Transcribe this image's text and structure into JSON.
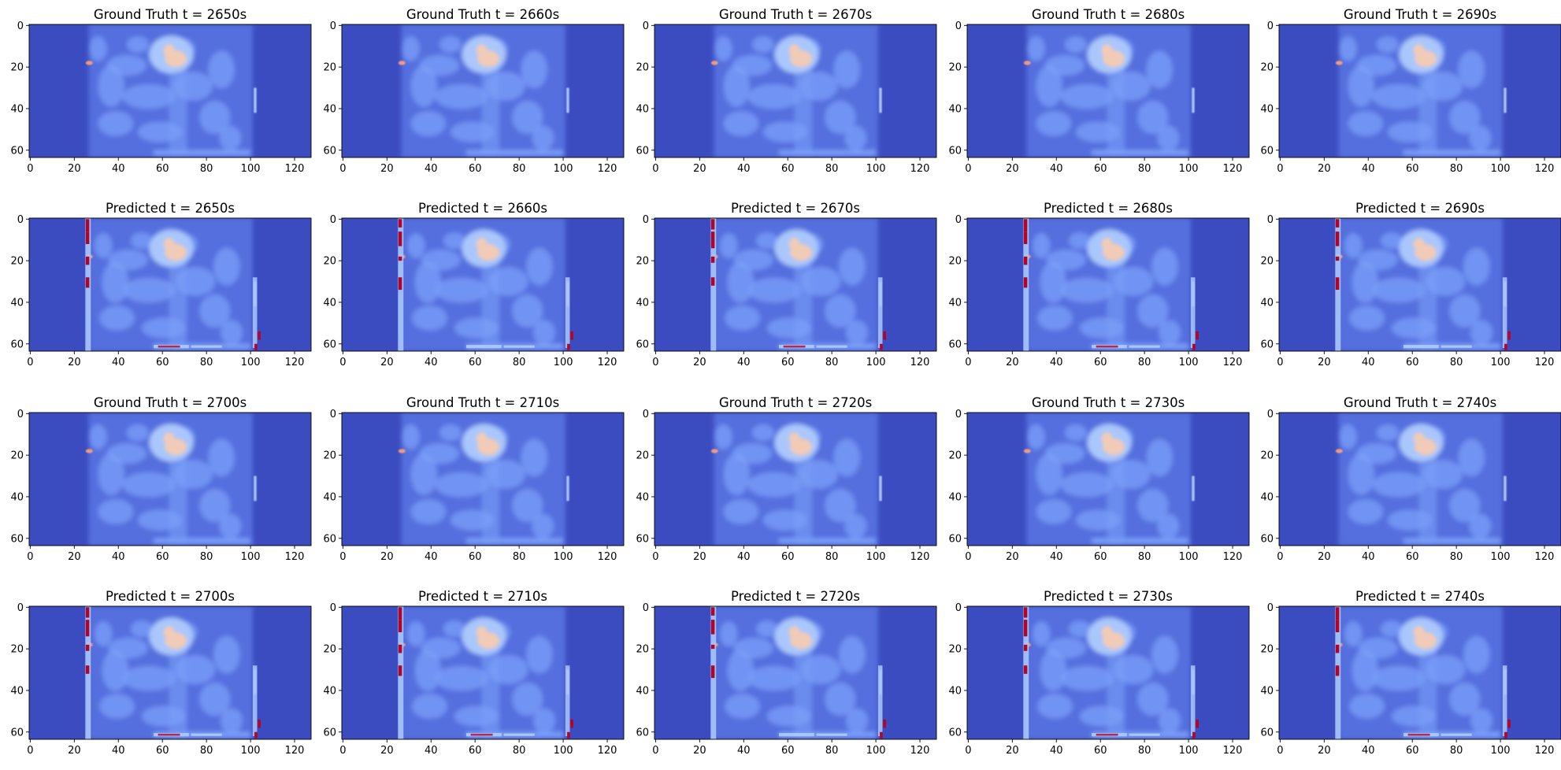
{
  "chart_data": {
    "type": "heatmap",
    "colormap": "coolwarm",
    "rows": 4,
    "cols": 5,
    "panel_defaults": {
      "x_ticks": [
        0,
        20,
        40,
        60,
        80,
        100,
        120
      ],
      "y_ticks": [
        0,
        20,
        40,
        60
      ],
      "xlim": [
        -0.5,
        127.5
      ],
      "ylim": [
        63.5,
        -0.5
      ],
      "grid": false
    },
    "panels": [
      {
        "title": "Ground Truth t = 2650s",
        "kind": "ground_truth",
        "t": 2650
      },
      {
        "title": "Ground Truth t = 2660s",
        "kind": "ground_truth",
        "t": 2660
      },
      {
        "title": "Ground Truth t = 2670s",
        "kind": "ground_truth",
        "t": 2670
      },
      {
        "title": "Ground Truth t = 2680s",
        "kind": "ground_truth",
        "t": 2680
      },
      {
        "title": "Ground Truth t = 2690s",
        "kind": "ground_truth",
        "t": 2690
      },
      {
        "title": "Predicted t = 2650s",
        "kind": "predicted",
        "t": 2650
      },
      {
        "title": "Predicted t = 2660s",
        "kind": "predicted",
        "t": 2660
      },
      {
        "title": "Predicted t = 2670s",
        "kind": "predicted",
        "t": 2670
      },
      {
        "title": "Predicted t = 2680s",
        "kind": "predicted",
        "t": 2680
      },
      {
        "title": "Predicted t = 2690s",
        "kind": "predicted",
        "t": 2690
      },
      {
        "title": "Ground Truth t = 2700s",
        "kind": "ground_truth",
        "t": 2700
      },
      {
        "title": "Ground Truth t = 2710s",
        "kind": "ground_truth",
        "t": 2710
      },
      {
        "title": "Ground Truth t = 2720s",
        "kind": "ground_truth",
        "t": 2720
      },
      {
        "title": "Ground Truth t = 2730s",
        "kind": "ground_truth",
        "t": 2730
      },
      {
        "title": "Ground Truth t = 2740s",
        "kind": "ground_truth",
        "t": 2740
      },
      {
        "title": "Predicted t = 2700s",
        "kind": "predicted",
        "t": 2700
      },
      {
        "title": "Predicted t = 2710s",
        "kind": "predicted",
        "t": 2710
      },
      {
        "title": "Predicted t = 2720s",
        "kind": "predicted",
        "t": 2720
      },
      {
        "title": "Predicted t = 2730s",
        "kind": "predicted",
        "t": 2730
      },
      {
        "title": "Predicted t = 2740s",
        "kind": "predicted",
        "t": 2740
      }
    ],
    "colors": {
      "background": "#3b4cc0",
      "field_low": "#5470de",
      "field_mid": "#7b9ff9",
      "field_high": "#aac7fd",
      "hot_light": "#f2cbb7",
      "hot_mid": "#f49a7b",
      "hot_max": "#b40426"
    }
  }
}
